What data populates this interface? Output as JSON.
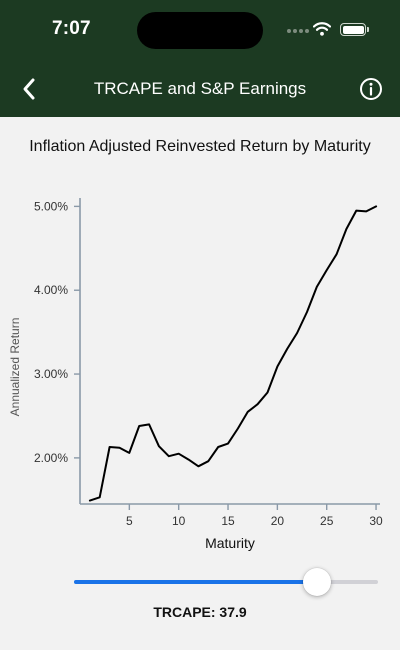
{
  "status_bar": {
    "time": "7:07",
    "wifi_icon": "wifi-icon",
    "battery_icon": "battery-icon"
  },
  "nav": {
    "title": "TRCAPE and S&P Earnings",
    "back_icon": "chevron-left-icon",
    "info_icon": "info-icon"
  },
  "chart_title": "Inflation Adjusted Reinvested Return by Maturity",
  "chart_data": {
    "type": "line",
    "xlabel": "Maturity",
    "ylabel": "Annualized Return",
    "xlim": [
      0,
      30.4
    ],
    "ylim": [
      1.45,
      5.1
    ],
    "x_ticks": [
      5,
      10,
      15,
      20,
      25,
      30
    ],
    "x_tick_labels": [
      "5",
      "10",
      "15",
      "20",
      "25",
      "30"
    ],
    "y_ticks": [
      2,
      3,
      4,
      5
    ],
    "y_tick_labels": [
      "2.00%",
      "3.00%",
      "4.00%",
      "5.00%"
    ],
    "grid": false,
    "line_color": "#000000",
    "x": [
      1,
      2,
      3,
      4,
      5,
      6,
      7,
      8,
      9,
      10,
      11,
      12,
      13,
      14,
      15,
      16,
      17,
      18,
      19,
      20,
      21,
      22,
      23,
      24,
      25,
      26,
      27,
      28,
      29,
      30
    ],
    "values": [
      1.49,
      1.53,
      2.13,
      2.12,
      2.06,
      2.38,
      2.4,
      2.14,
      2.02,
      2.05,
      1.98,
      1.9,
      1.96,
      2.13,
      2.17,
      2.35,
      2.55,
      2.64,
      2.78,
      3.09,
      3.3,
      3.49,
      3.74,
      4.04,
      4.24,
      4.43,
      4.73,
      4.95,
      4.94,
      5.0
    ]
  },
  "slider": {
    "label": "TRCAPE: 37.9",
    "fraction": 0.8,
    "accent": "#1a73e8"
  },
  "colors": {
    "header_bg": "#1c3a22",
    "page_bg": "#f2f2f2",
    "axis": "#8a99a8",
    "tick_label": "#333333"
  }
}
